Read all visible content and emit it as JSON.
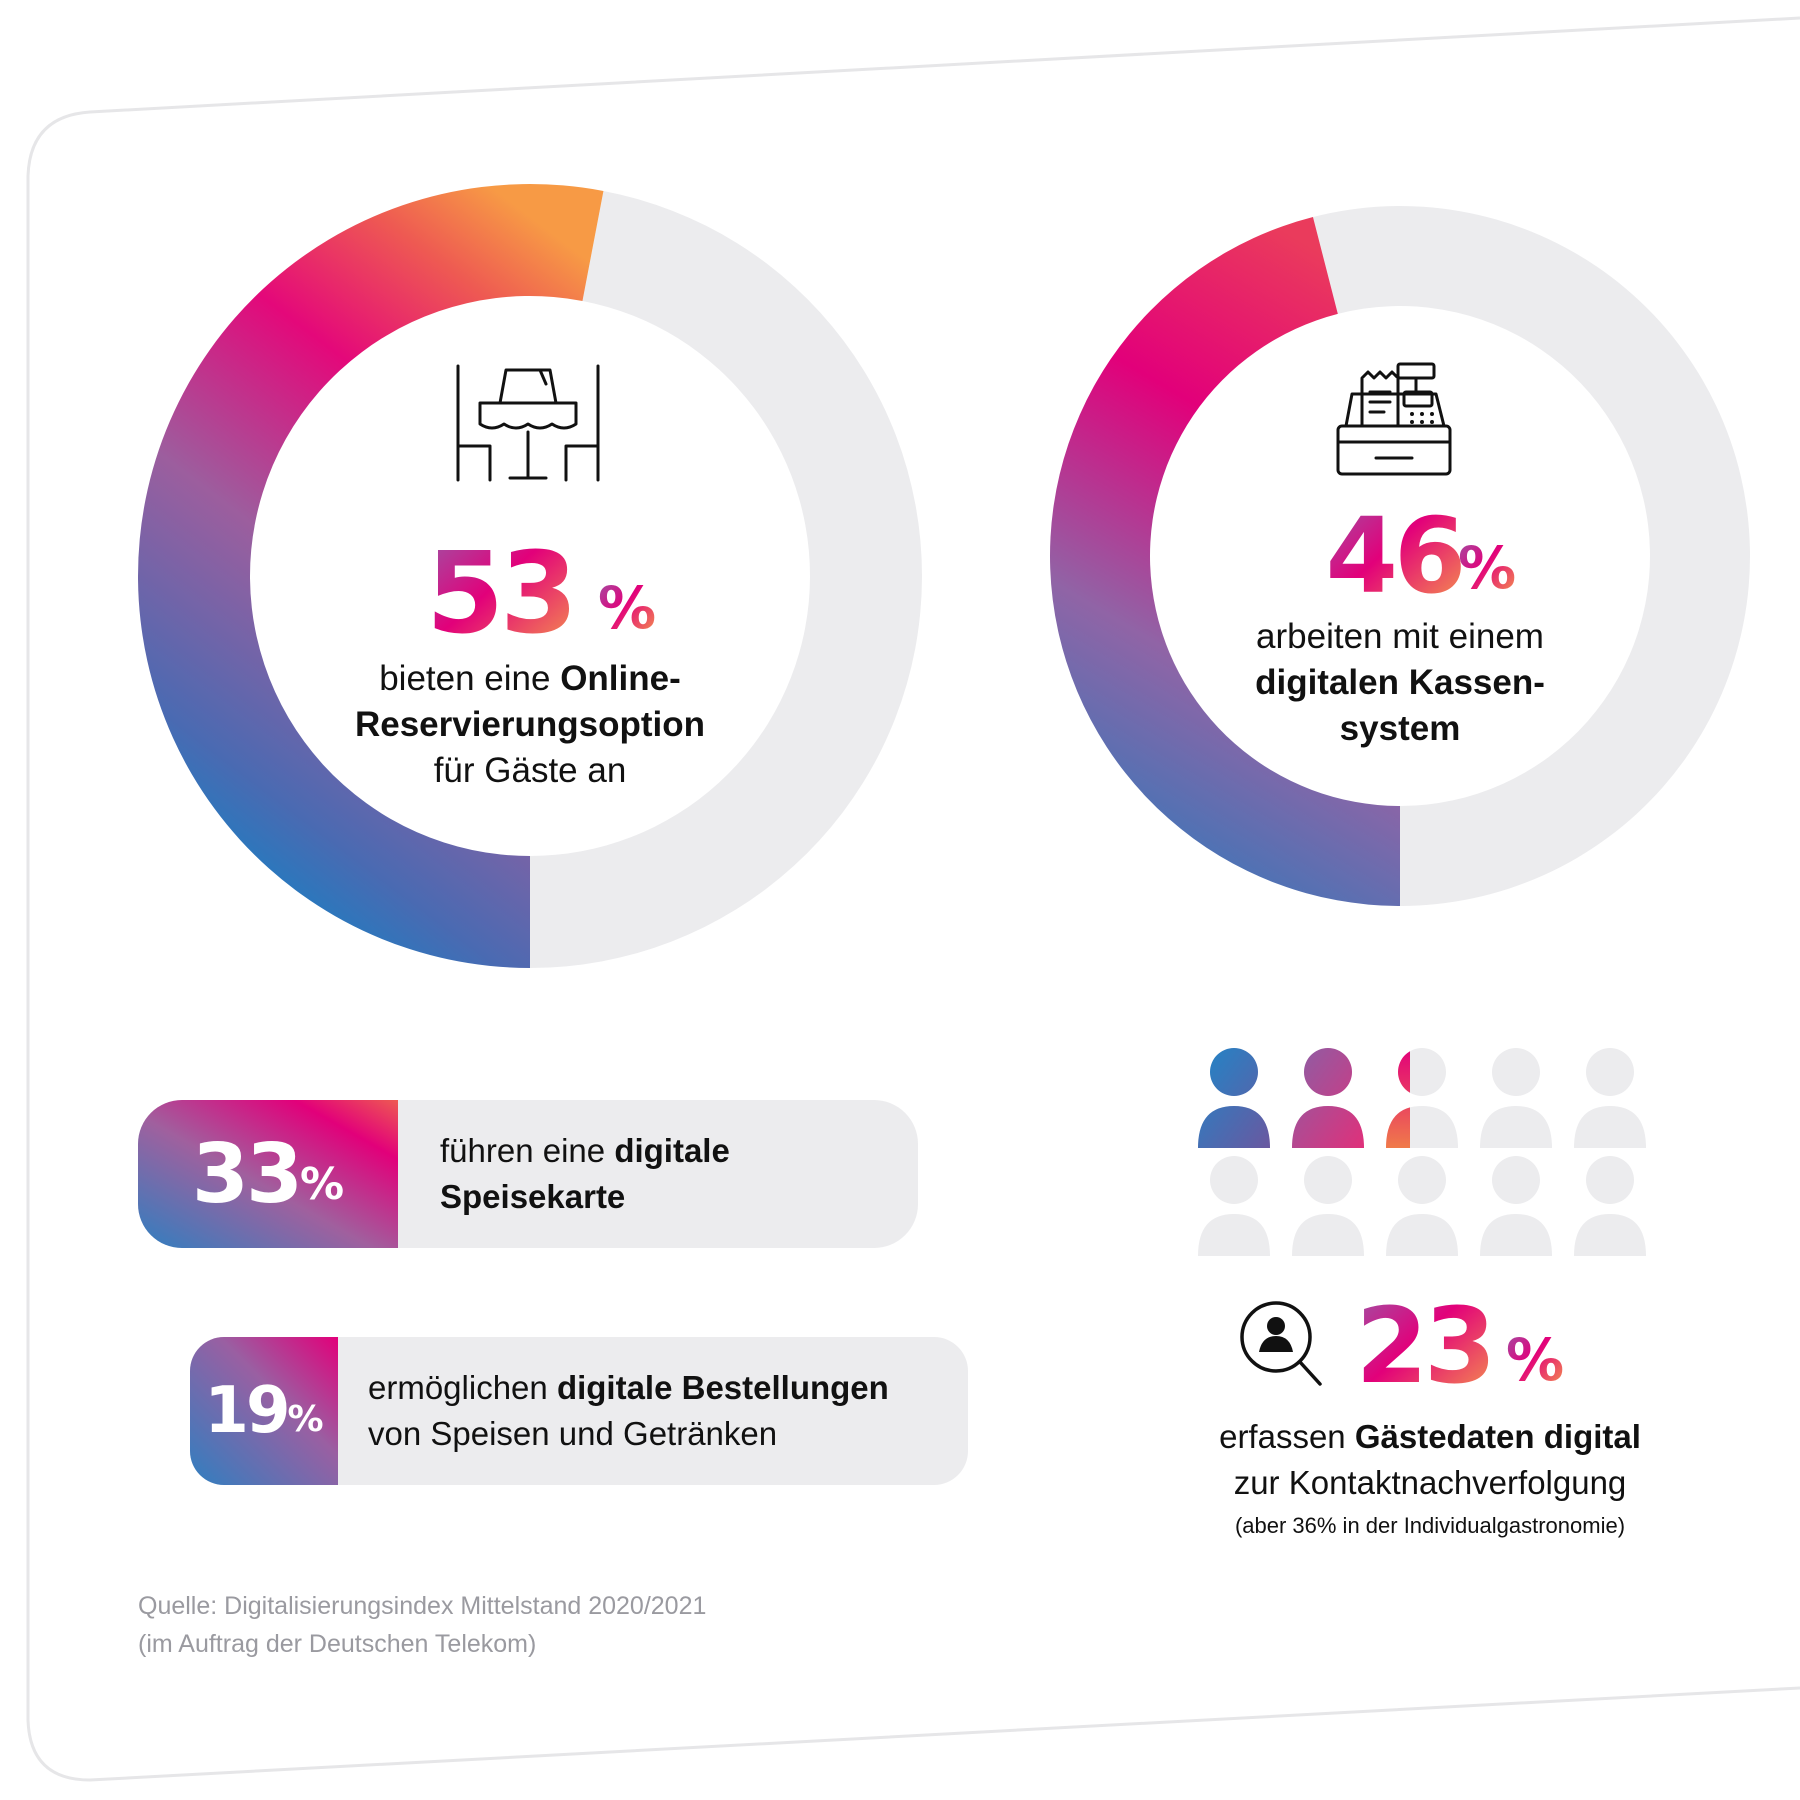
{
  "chart_data": [
    {
      "type": "pie",
      "variant": "donut",
      "value": 53,
      "remainder": 47,
      "icon": "restaurant-table-icon",
      "label_value": "53",
      "label_unit": "%",
      "text_plain_1": "bieten eine ",
      "text_bold_1": "Online-",
      "text_bold_2": "Reservierungsoption",
      "text_plain_2": "für Gäste an"
    },
    {
      "type": "pie",
      "variant": "donut",
      "value": 46,
      "remainder": 54,
      "icon": "cash-register-icon",
      "label_value": "46",
      "label_unit": "%",
      "text_plain_1": "arbeiten mit einem",
      "text_bold_1": "digitalen Kassen-",
      "text_bold_2": "system"
    },
    {
      "type": "bar",
      "value": 33,
      "label_value": "33",
      "label_unit": "%",
      "text_plain_1": "führen eine ",
      "text_bold_1": "digitale",
      "text_bold_2": "Speisekarte"
    },
    {
      "type": "bar",
      "value": 19,
      "label_value": "19",
      "label_unit": "%",
      "text_plain_1": "ermöglichen ",
      "text_bold_1": "digitale Bestellungen",
      "text_plain_2": "von Speisen und Getränken"
    },
    {
      "type": "pictogram",
      "total": 10,
      "value": 23,
      "icon": "person-icon",
      "search_icon": "person-search-icon",
      "label_value": "23",
      "label_unit": "%",
      "text_plain_1": "erfassen ",
      "text_bold_1": "Gästedaten digital",
      "text_plain_2": "zur Kontaktnachverfolgung",
      "note": "(aber 36% in der Individualgastronomie)"
    }
  ],
  "source": {
    "line1": "Quelle: Digitalisierungsindex Mittelstand 2020/2021",
    "line2": "(im Auftrag der Deutschen Telekom)"
  },
  "colors": {
    "track": "#ececee",
    "blue": "#0a86c8",
    "violet": "#8a66b0",
    "magenta": "#e2007a",
    "coral": "#ec5a4e",
    "orange": "#f79a45",
    "frame": "#e6e6e8"
  }
}
